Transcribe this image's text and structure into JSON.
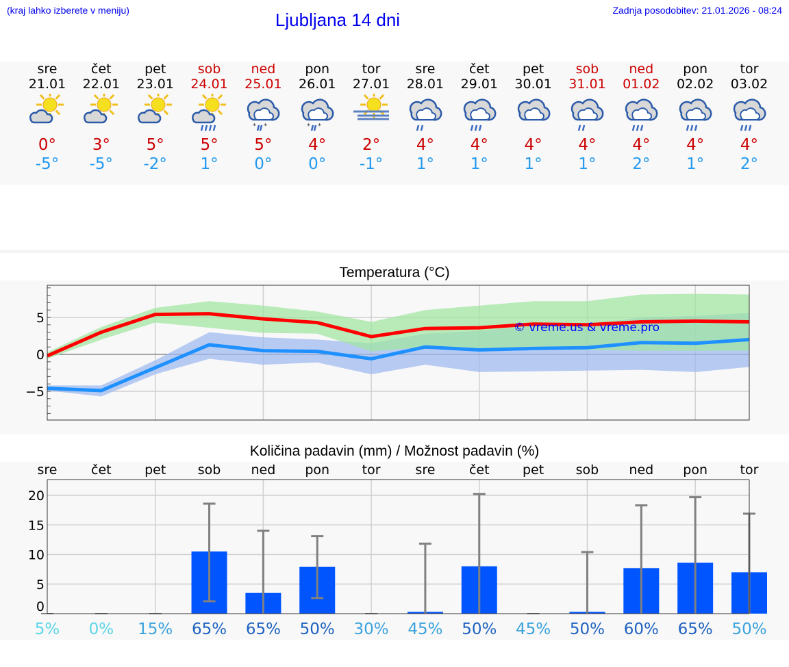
{
  "header": {
    "hint": "(kraj lahko izberete v meniju)",
    "title": "Ljubljana 14 dni",
    "updated": "Zadnja posodobitev: 21.01.2026 - 08:24"
  },
  "days": [
    {
      "name": "sre",
      "date": "21.01",
      "weekend": false,
      "icon": "sun-cloud",
      "max": "0°",
      "min": "-5°"
    },
    {
      "name": "čet",
      "date": "22.01",
      "weekend": false,
      "icon": "sun-cloud",
      "max": "3°",
      "min": "-5°"
    },
    {
      "name": "pet",
      "date": "23.01",
      "weekend": false,
      "icon": "sun-cloud",
      "max": "5°",
      "min": "-2°"
    },
    {
      "name": "sob",
      "date": "24.01",
      "weekend": true,
      "icon": "sun-cloud-rain",
      "max": "5°",
      "min": "1°"
    },
    {
      "name": "ned",
      "date": "25.01",
      "weekend": true,
      "icon": "cloud-sleet",
      "max": "5°",
      "min": "0°"
    },
    {
      "name": "pon",
      "date": "26.01",
      "weekend": false,
      "icon": "cloud-sleet",
      "max": "4°",
      "min": "0°"
    },
    {
      "name": "tor",
      "date": "27.01",
      "weekend": false,
      "icon": "sun-fog",
      "max": "2°",
      "min": "-1°"
    },
    {
      "name": "sre",
      "date": "28.01",
      "weekend": false,
      "icon": "cloud-rain-light",
      "max": "4°",
      "min": "1°"
    },
    {
      "name": "čet",
      "date": "29.01",
      "weekend": false,
      "icon": "cloud-rain",
      "max": "4°",
      "min": "1°"
    },
    {
      "name": "pet",
      "date": "30.01",
      "weekend": false,
      "icon": "cloud",
      "max": "4°",
      "min": "1°"
    },
    {
      "name": "sob",
      "date": "31.01",
      "weekend": true,
      "icon": "cloud-rain-light",
      "max": "4°",
      "min": "1°"
    },
    {
      "name": "ned",
      "date": "01.02",
      "weekend": true,
      "icon": "cloud-rain",
      "max": "4°",
      "min": "2°"
    },
    {
      "name": "pon",
      "date": "02.02",
      "weekend": false,
      "icon": "cloud-rain",
      "max": "4°",
      "min": "1°"
    },
    {
      "name": "tor",
      "date": "03.02",
      "weekend": false,
      "icon": "cloud-rain",
      "max": "4°",
      "min": "2°"
    }
  ],
  "colors": {
    "weekend": "#cc0000",
    "max": "#ff0000",
    "min": "#1e90ff",
    "maxband": "#9ee59e",
    "minband": "#9bb8f0",
    "bar": "#0055ff",
    "err": "#808080"
  },
  "chart_data": [
    {
      "type": "line",
      "title": "Temperatura (°C)",
      "ylim": [
        -8.8,
        9.2
      ],
      "yticks": [
        "5",
        "0",
        "−5"
      ],
      "ytick_values": [
        5,
        0,
        -5
      ],
      "watermark": "© vreme.us & vreme.pro",
      "series": [
        {
          "name": "max",
          "values": [
            -0.2,
            3.0,
            5.4,
            5.5,
            4.8,
            4.3,
            2.4,
            3.5,
            3.6,
            4.1,
            4.0,
            4.4,
            4.5,
            4.4
          ],
          "band_hi": [
            0.3,
            3.7,
            6.3,
            7.2,
            6.6,
            5.8,
            4.4,
            6.0,
            6.6,
            7.2,
            7.2,
            8.1,
            8.2,
            8.1
          ],
          "band_lo": [
            -0.6,
            2.0,
            4.3,
            3.6,
            2.9,
            2.8,
            0.4,
            1.0,
            0.8,
            0.7,
            0.6,
            0.5,
            0.5,
            0.5
          ]
        },
        {
          "name": "min",
          "values": [
            -4.6,
            -4.9,
            -1.8,
            1.3,
            0.5,
            0.4,
            -0.6,
            1.0,
            0.6,
            0.8,
            0.9,
            1.6,
            1.5,
            2.0
          ],
          "band_hi": [
            -4.2,
            -4.2,
            -0.8,
            3.0,
            2.3,
            2.0,
            1.5,
            2.8,
            3.2,
            3.8,
            4.0,
            5.0,
            5.2,
            5.6
          ],
          "band_lo": [
            -4.9,
            -5.7,
            -2.7,
            -0.6,
            -1.4,
            -1.1,
            -2.7,
            -1.4,
            -2.4,
            -2.3,
            -2.2,
            -2.1,
            -2.4,
            -1.7
          ]
        }
      ]
    },
    {
      "type": "bar",
      "title": "Količina padavin (mm) / Možnost padavin (%)",
      "ylim": [
        0,
        21
      ],
      "yticks": [
        "20",
        "15",
        "10",
        "5",
        "0"
      ],
      "ytick_values": [
        20,
        15,
        10,
        5,
        0
      ],
      "categories": [
        "sre",
        "čet",
        "pet",
        "sob",
        "ned",
        "pon",
        "tor",
        "sre",
        "čet",
        "pet",
        "sob",
        "ned",
        "pon",
        "tor"
      ],
      "values": [
        0,
        0,
        0,
        10.5,
        3.5,
        7.9,
        0,
        0.3,
        8.0,
        0,
        0.3,
        7.7,
        8.6,
        7.0
      ],
      "err_lo": [
        0,
        0,
        0,
        2.1,
        0,
        2.6,
        0,
        0,
        0,
        0,
        0,
        0,
        0,
        0
      ],
      "err_hi": [
        0,
        0,
        0,
        18.6,
        14.0,
        13.1,
        0,
        11.8,
        20.2,
        0,
        10.4,
        18.3,
        19.7,
        16.9
      ],
      "probability": [
        "5%",
        "0%",
        "15%",
        "65%",
        "65%",
        "50%",
        "30%",
        "45%",
        "50%",
        "45%",
        "50%",
        "60%",
        "65%",
        "50%"
      ],
      "probability_colors": [
        "#5cd6e6",
        "#5cd6e6",
        "#3aa2dc",
        "#1e62c0",
        "#1e62c0",
        "#1e62c0",
        "#3aa2dc",
        "#3aa2dc",
        "#1e62c0",
        "#3aa2dc",
        "#1e62c0",
        "#1e62c0",
        "#1e62c0",
        "#3aa2dc"
      ]
    }
  ]
}
